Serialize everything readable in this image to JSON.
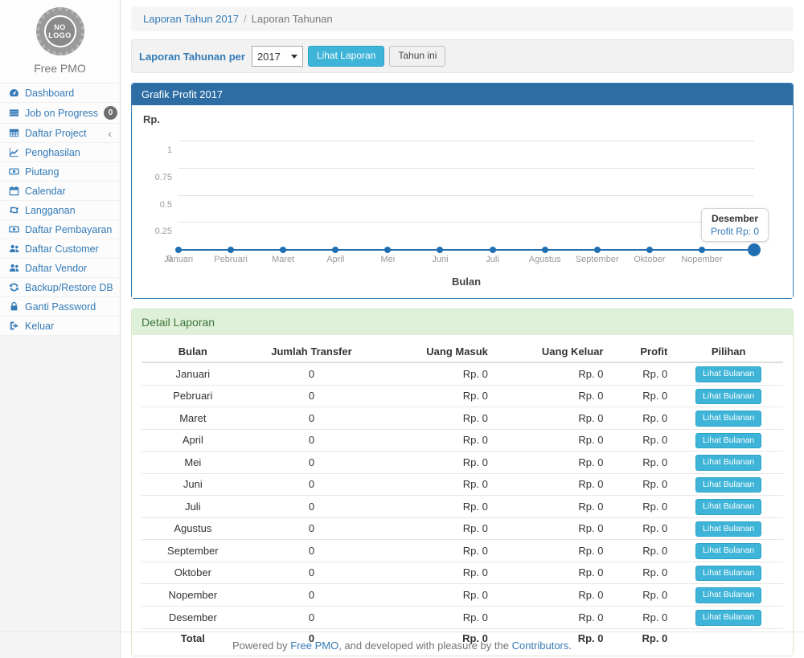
{
  "sidebar": {
    "logo": {
      "line1": "NO",
      "line2": "LOGO"
    },
    "brand": "Free PMO",
    "items": [
      {
        "label": "Dashboard",
        "icon": "dashboard-icon"
      },
      {
        "label": "Job on Progress",
        "icon": "tasks-icon",
        "badge": "0"
      },
      {
        "label": "Daftar Project",
        "icon": "table-icon",
        "chevron": true
      },
      {
        "label": "Penghasilan",
        "icon": "chart-line-icon"
      },
      {
        "label": "Piutang",
        "icon": "money-icon"
      },
      {
        "label": "Calendar",
        "icon": "calendar-icon"
      },
      {
        "label": "Langganan",
        "icon": "retweet-icon"
      },
      {
        "label": "Daftar Pembayaran",
        "icon": "money-icon"
      },
      {
        "label": "Daftar Customer",
        "icon": "users-icon"
      },
      {
        "label": "Daftar Vendor",
        "icon": "users-icon"
      },
      {
        "label": "Backup/Restore DB",
        "icon": "refresh-icon"
      },
      {
        "label": "Ganti Password",
        "icon": "lock-icon"
      },
      {
        "label": "Keluar",
        "icon": "sign-out-icon"
      }
    ]
  },
  "breadcrumb": {
    "link": "Laporan Tahun 2017",
    "separator": "/",
    "current": "Laporan Tahunan"
  },
  "filter": {
    "label": "Laporan Tahunan per",
    "year": "2017",
    "submit_label": "Lihat Laporan",
    "year_button": "Tahun ini"
  },
  "chart_panel": {
    "title": "Grafik Profit 2017"
  },
  "chart_data": {
    "type": "line",
    "title": "Grafik Profit 2017",
    "xlabel": "Bulan",
    "ylabel": "Rp.",
    "categories": [
      "Januari",
      "Pebruari",
      "Maret",
      "April",
      "Mei",
      "Juni",
      "Juli",
      "Agustus",
      "September",
      "Oktober",
      "Nopember",
      "Desember"
    ],
    "x_labels_visible": [
      "Januari",
      "Pebruari",
      "Maret",
      "April",
      "Mei",
      "Juni",
      "Juli",
      "Agustus",
      "September",
      "Oktober",
      "Nopember"
    ],
    "series": [
      {
        "name": "Profit",
        "values": [
          0,
          0,
          0,
          0,
          0,
          0,
          0,
          0,
          0,
          0,
          0,
          0
        ]
      }
    ],
    "ylim": [
      0,
      1
    ],
    "yticks": [
      "0",
      "0.25",
      "0.5",
      "0.75",
      "1"
    ],
    "ytick_values": [
      0,
      0.25,
      0.5,
      0.75,
      1
    ],
    "grid": true,
    "legend": "none",
    "highlighted_point": "Desember",
    "tooltip": {
      "title": "Desember",
      "text": "Profit Rp: 0"
    },
    "line_color": "#1f6fb2"
  },
  "detail": {
    "title": "Detail Laporan",
    "columns": [
      "Bulan",
      "Jumlah Transfer",
      "Uang Masuk",
      "Uang Keluar",
      "Profit",
      "Pilihan"
    ],
    "action_label": "Lihat Bulanan",
    "rows": [
      {
        "bulan": "Januari",
        "jumlah_transfer": "0",
        "uang_masuk": "Rp. 0",
        "uang_keluar": "Rp. 0",
        "profit": "Rp. 0"
      },
      {
        "bulan": "Pebruari",
        "jumlah_transfer": "0",
        "uang_masuk": "Rp. 0",
        "uang_keluar": "Rp. 0",
        "profit": "Rp. 0"
      },
      {
        "bulan": "Maret",
        "jumlah_transfer": "0",
        "uang_masuk": "Rp. 0",
        "uang_keluar": "Rp. 0",
        "profit": "Rp. 0"
      },
      {
        "bulan": "April",
        "jumlah_transfer": "0",
        "uang_masuk": "Rp. 0",
        "uang_keluar": "Rp. 0",
        "profit": "Rp. 0"
      },
      {
        "bulan": "Mei",
        "jumlah_transfer": "0",
        "uang_masuk": "Rp. 0",
        "uang_keluar": "Rp. 0",
        "profit": "Rp. 0"
      },
      {
        "bulan": "Juni",
        "jumlah_transfer": "0",
        "uang_masuk": "Rp. 0",
        "uang_keluar": "Rp. 0",
        "profit": "Rp. 0"
      },
      {
        "bulan": "Juli",
        "jumlah_transfer": "0",
        "uang_masuk": "Rp. 0",
        "uang_keluar": "Rp. 0",
        "profit": "Rp. 0"
      },
      {
        "bulan": "Agustus",
        "jumlah_transfer": "0",
        "uang_masuk": "Rp. 0",
        "uang_keluar": "Rp. 0",
        "profit": "Rp. 0"
      },
      {
        "bulan": "September",
        "jumlah_transfer": "0",
        "uang_masuk": "Rp. 0",
        "uang_keluar": "Rp. 0",
        "profit": "Rp. 0"
      },
      {
        "bulan": "Oktober",
        "jumlah_transfer": "0",
        "uang_masuk": "Rp. 0",
        "uang_keluar": "Rp. 0",
        "profit": "Rp. 0"
      },
      {
        "bulan": "Nopember",
        "jumlah_transfer": "0",
        "uang_masuk": "Rp. 0",
        "uang_keluar": "Rp. 0",
        "profit": "Rp. 0"
      },
      {
        "bulan": "Desember",
        "jumlah_transfer": "0",
        "uang_masuk": "Rp. 0",
        "uang_keluar": "Rp. 0",
        "profit": "Rp. 0"
      }
    ],
    "total": {
      "bulan": "Total",
      "jumlah_transfer": "0",
      "uang_masuk": "Rp. 0",
      "uang_keluar": "Rp. 0",
      "profit": "Rp. 0"
    }
  },
  "footer": {
    "text_prefix": "Powered by ",
    "link1": "Free PMO",
    "text_mid": ", and developed with pleasure by the ",
    "link2": "Contributors",
    "text_suffix": "."
  },
  "colors": {
    "accent_blue": "#337ab7",
    "panel_primary_header": "#2e6da4",
    "panel_success_bg": "#dff0d8",
    "panel_success_text": "#3c763d",
    "panel_success_border": "#d6e9c6",
    "info_button": "#3eb4d8",
    "chart_line": "#1f6fb2",
    "badge_gray": "#6f6f6f"
  }
}
